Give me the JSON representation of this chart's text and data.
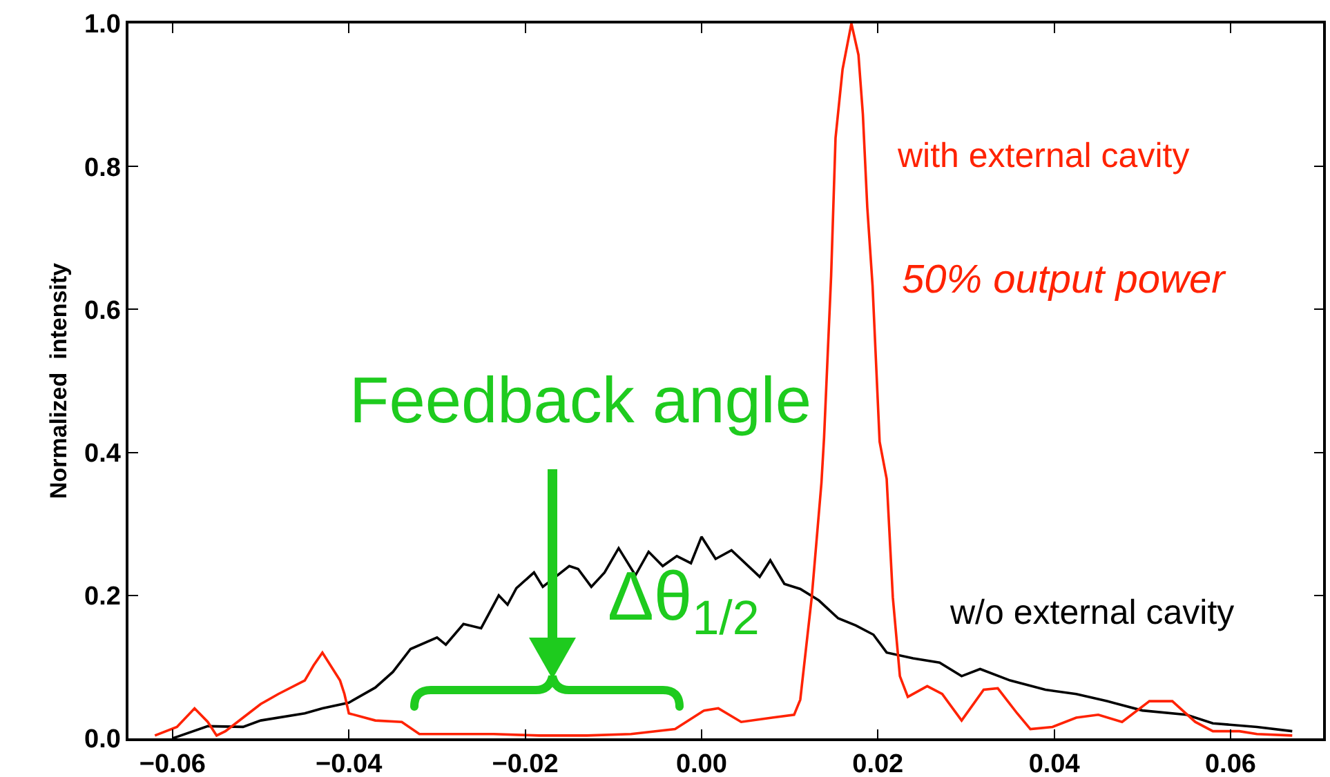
{
  "chart_data": {
    "type": "line",
    "ylabel": "Normalized  intensity",
    "xlim": [
      -0.065,
      0.0705
    ],
    "ylim": [
      0,
      1
    ],
    "xticks": [
      {
        "value": -0.06,
        "label": "−0.06"
      },
      {
        "value": -0.04,
        "label": "−0.04"
      },
      {
        "value": -0.02,
        "label": "−0.02"
      },
      {
        "value": 0,
        "label": "0.00"
      },
      {
        "value": 0.02,
        "label": "0.02"
      },
      {
        "value": 0.04,
        "label": "0.04"
      },
      {
        "value": 0.06,
        "label": "0.06"
      }
    ],
    "yticks": [
      {
        "value": 0,
        "label": "0.0"
      },
      {
        "value": 0.2,
        "label": "0.2"
      },
      {
        "value": 0.4,
        "label": "0.4"
      },
      {
        "value": 0.6,
        "label": "0.6"
      },
      {
        "value": 0.8,
        "label": "0.8"
      },
      {
        "value": 1,
        "label": "1.0"
      }
    ],
    "grid": false,
    "marker": "none",
    "line_style": "solid",
    "series": [
      {
        "color": "#000000",
        "x": [
          -0.06,
          -0.056,
          -0.052,
          -0.05,
          -0.045,
          -0.043,
          -0.04,
          -0.037,
          -0.035,
          -0.033,
          -0.03,
          -0.029,
          -0.027,
          -0.025,
          -0.023,
          -0.022,
          -0.021,
          -0.019,
          -0.018,
          -0.015,
          -0.014,
          -0.0125,
          -0.011,
          -0.0094,
          -0.0075,
          -0.006,
          -0.0044,
          -0.0028,
          -0.0012,
          0,
          0.0016,
          0.0034,
          0.0066,
          0.0078,
          0.0094,
          0.0112,
          0.0133,
          0.0155,
          0.0175,
          0.0195,
          0.021,
          0.024,
          0.027,
          0.0295,
          0.0316,
          0.035,
          0.039,
          0.0425,
          0.046,
          0.05,
          0.055,
          0.058,
          0.063,
          0.067
        ],
        "values": [
          0,
          0.017,
          0.016,
          0.025,
          0.035,
          0.042,
          0.05,
          0.071,
          0.093,
          0.125,
          0.141,
          0.131,
          0.16,
          0.154,
          0.2,
          0.187,
          0.21,
          0.232,
          0.212,
          0.241,
          0.237,
          0.212,
          0.232,
          0.266,
          0.228,
          0.261,
          0.241,
          0.255,
          0.245,
          0.282,
          0.251,
          0.263,
          0.226,
          0.249,
          0.216,
          0.209,
          0.193,
          0.168,
          0.158,
          0.145,
          0.12,
          0.112,
          0.106,
          0.087,
          0.097,
          0.081,
          0.068,
          0.062,
          0.052,
          0.039,
          0.033,
          0.021,
          0.016,
          0.01
        ]
      },
      {
        "color": "#ff2200",
        "x": [
          -0.062,
          -0.0595,
          -0.0575,
          -0.056,
          -0.055,
          -0.054,
          -0.052,
          -0.05,
          -0.048,
          -0.045,
          -0.044,
          -0.043,
          -0.041,
          -0.0405,
          -0.04,
          -0.037,
          -0.034,
          -0.032,
          -0.029,
          -0.0236,
          -0.0184,
          -0.013,
          -0.008,
          -0.003,
          0.0003,
          0.0019,
          0.0045,
          0.008,
          0.0105,
          0.0112,
          0.0125,
          0.0136,
          0.0139,
          0.0147,
          0.0152,
          0.016,
          0.017,
          0.0178,
          0.0183,
          0.0188,
          0.0194,
          0.0202,
          0.021,
          0.0217,
          0.0225,
          0.0234,
          0.0256,
          0.0273,
          0.0295,
          0.032,
          0.0336,
          0.0358,
          0.0373,
          0.0398,
          0.0425,
          0.045,
          0.0477,
          0.0508,
          0.0534,
          0.056,
          0.058,
          0.061,
          0.063,
          0.067
        ],
        "values": [
          0.004,
          0.016,
          0.042,
          0.023,
          0.004,
          0.01,
          0.029,
          0.048,
          0.062,
          0.081,
          0.102,
          0.12,
          0.081,
          0.062,
          0.035,
          0.025,
          0.023,
          0.006,
          0.006,
          0.006,
          0.004,
          0.004,
          0.006,
          0.013,
          0.039,
          0.042,
          0.023,
          0.029,
          0.033,
          0.054,
          0.197,
          0.357,
          0.421,
          0.647,
          0.84,
          0.936,
          1.0,
          0.956,
          0.873,
          0.743,
          0.633,
          0.415,
          0.363,
          0.197,
          0.087,
          0.058,
          0.073,
          0.062,
          0.025,
          0.068,
          0.07,
          0.035,
          0.013,
          0.016,
          0.029,
          0.033,
          0.023,
          0.052,
          0.052,
          0.023,
          0.01,
          0.01,
          0.006,
          0.004
        ]
      }
    ],
    "annotations": [
      "with external cavity",
      "50% output power",
      "w/o external cavity",
      "Feedback angle",
      "Δθ$_{1/2}$"
    ]
  }
}
